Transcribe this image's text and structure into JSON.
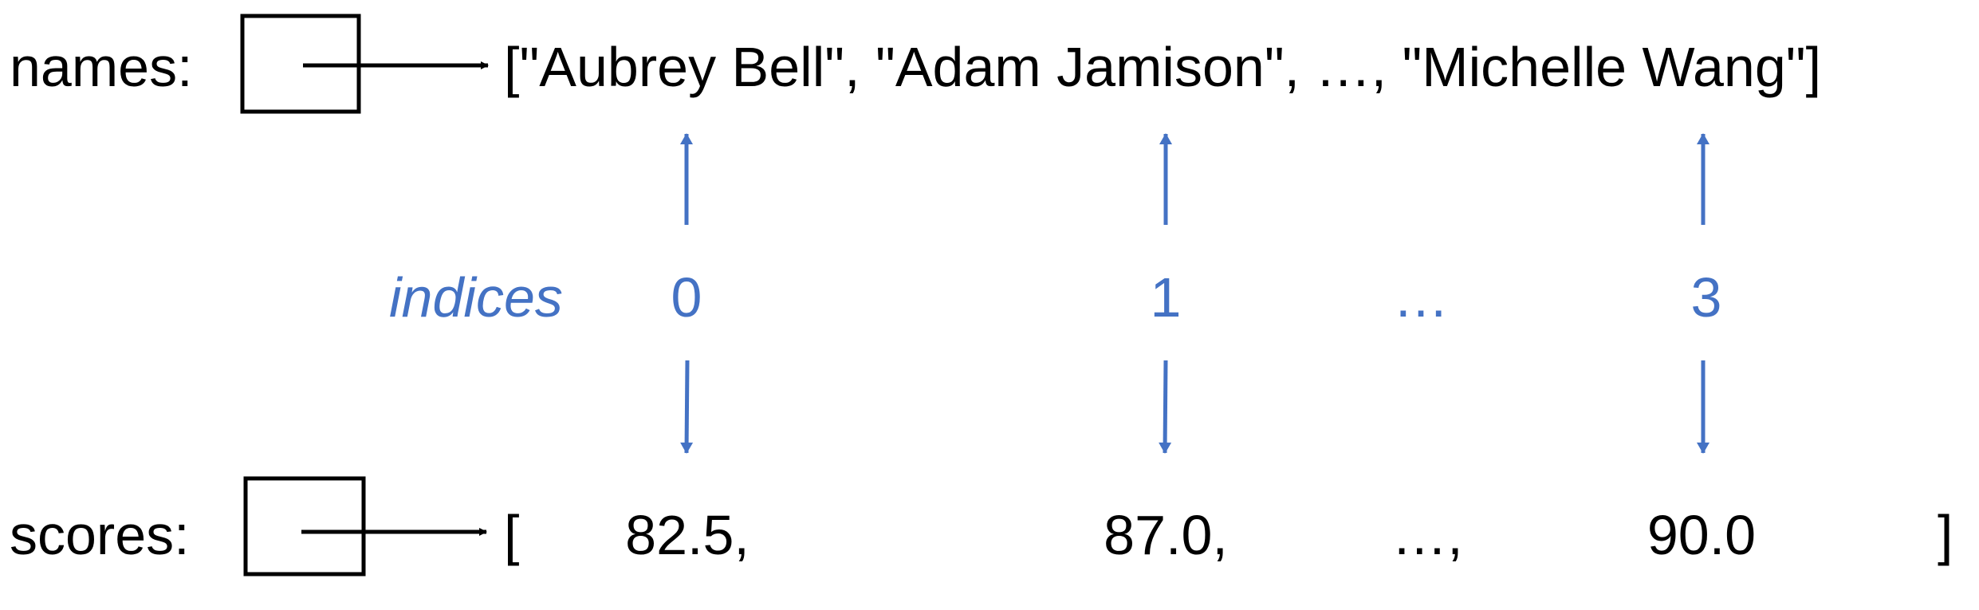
{
  "colors": {
    "text": "#000000",
    "accent": "#4472C4",
    "background": "#FFFFFF"
  },
  "names_row": {
    "label": "names:",
    "list_text": "[\"Aubrey Bell\", \"Adam Jamison\", …, \"Michelle Wang\"]"
  },
  "indices_row": {
    "label": "indices",
    "values": [
      "0",
      "1",
      "…",
      "3"
    ]
  },
  "scores_row": {
    "label": "scores:",
    "open_bracket": "[",
    "values": [
      "82.5,",
      "87.0,",
      "…,",
      "90.0"
    ],
    "close_bracket": "]"
  }
}
